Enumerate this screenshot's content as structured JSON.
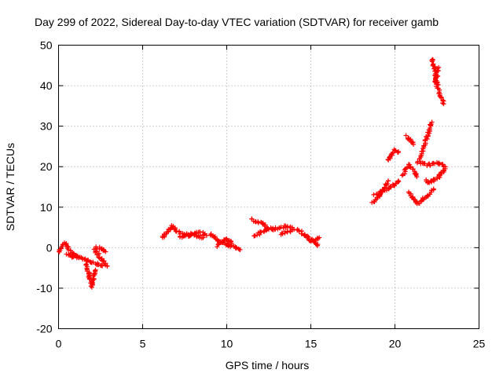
{
  "chart_data": {
    "type": "scatter",
    "title": "Day 299 of 2022, Sidereal Day-to-day VTEC variation (SDTVAR) for receiver gamb",
    "xlabel": "GPS time / hours",
    "ylabel": "SDTVAR / TECUs",
    "xlim": [
      0,
      25
    ],
    "ylim": [
      -20,
      50
    ],
    "xticks": [
      0,
      5,
      10,
      15,
      20,
      25
    ],
    "yticks": [
      -20,
      -10,
      0,
      10,
      20,
      30,
      40,
      50
    ],
    "grid": true,
    "marker": "+",
    "color": "#ff0000",
    "segments": [
      {
        "x": [
          0.0,
          0.2,
          0.4,
          0.6,
          0.8,
          1.0,
          1.2
        ],
        "y": [
          -1.0,
          0.5,
          1.2,
          -0.5,
          -1.5,
          -2.0,
          -2.5
        ]
      },
      {
        "x": [
          0.5,
          0.8,
          1.1,
          1.4,
          1.7,
          2.0,
          2.3,
          2.6
        ],
        "y": [
          -1.8,
          -2.2,
          -2.0,
          -2.6,
          -3.0,
          -3.5,
          -4.0,
          -4.5
        ]
      },
      {
        "x": [
          1.6,
          1.7,
          1.8,
          1.9,
          2.0,
          2.1,
          2.2
        ],
        "y": [
          -4.0,
          -5.0,
          -6.5,
          -8.0,
          -9.5,
          -7.0,
          -5.5
        ]
      },
      {
        "x": [
          2.1,
          2.3,
          2.5,
          2.7,
          2.9
        ],
        "y": [
          -0.5,
          -1.5,
          -2.5,
          -3.5,
          -4.5
        ]
      },
      {
        "x": [
          2.2,
          2.4,
          2.6,
          2.8
        ],
        "y": [
          0.0,
          0.0,
          -0.5,
          -1.0
        ]
      },
      {
        "x": [
          6.2,
          6.4,
          6.6,
          6.8,
          7.0
        ],
        "y": [
          2.5,
          3.5,
          4.5,
          5.5,
          4.0
        ]
      },
      {
        "x": [
          7.0,
          7.4,
          7.8,
          8.2,
          8.6
        ],
        "y": [
          4.0,
          3.5,
          3.0,
          3.0,
          2.5
        ]
      },
      {
        "x": [
          7.2,
          7.6,
          8.0,
          8.4,
          8.8
        ],
        "y": [
          2.5,
          2.8,
          3.5,
          3.8,
          3.0
        ]
      },
      {
        "x": [
          9.0,
          9.3,
          9.6,
          9.9,
          10.2,
          10.5,
          10.8
        ],
        "y": [
          3.5,
          2.5,
          1.5,
          1.0,
          0.5,
          0.0,
          -0.5
        ]
      },
      {
        "x": [
          9.4,
          9.7,
          10.0,
          10.3
        ],
        "y": [
          0.5,
          1.5,
          2.0,
          1.0
        ]
      },
      {
        "x": [
          11.5,
          11.8,
          12.1,
          12.4,
          12.7
        ],
        "y": [
          7.0,
          6.5,
          6.0,
          5.0,
          4.5
        ]
      },
      {
        "x": [
          11.6,
          11.9,
          12.2,
          12.5
        ],
        "y": [
          3.0,
          3.5,
          4.0,
          4.5
        ]
      },
      {
        "x": [
          12.7,
          13.1,
          13.5,
          13.9
        ],
        "y": [
          4.5,
          5.0,
          5.2,
          5.0
        ]
      },
      {
        "x": [
          13.2,
          13.6,
          14.0
        ],
        "y": [
          3.5,
          4.0,
          4.5
        ]
      },
      {
        "x": [
          14.2,
          14.5,
          14.8,
          15.1,
          15.4
        ],
        "y": [
          4.5,
          3.5,
          2.5,
          1.5,
          0.5
        ]
      },
      {
        "x": [
          14.6,
          14.9,
          15.2,
          15.5
        ],
        "y": [
          3.0,
          2.0,
          1.5,
          2.5
        ]
      },
      {
        "x": [
          18.7,
          19.0,
          19.3,
          19.6
        ],
        "y": [
          11.0,
          12.5,
          14.0,
          16.5
        ]
      },
      {
        "x": [
          18.8,
          19.1,
          19.4,
          19.7,
          20.0,
          20.2
        ],
        "y": [
          13.0,
          13.5,
          14.0,
          14.8,
          15.5,
          16.5
        ]
      },
      {
        "x": [
          19.6,
          19.8,
          20.0,
          20.2
        ],
        "y": [
          21.5,
          23.0,
          24.0,
          23.5
        ]
      },
      {
        "x": [
          20.7,
          20.9,
          21.1
        ],
        "y": [
          27.5,
          26.5,
          25.5
        ]
      },
      {
        "x": [
          20.5,
          20.7,
          20.9,
          21.1,
          21.3
        ],
        "y": [
          18.0,
          19.5,
          20.5,
          19.0,
          17.5
        ]
      },
      {
        "x": [
          20.8,
          21.1,
          21.4,
          21.7,
          22.0,
          22.3
        ],
        "y": [
          13.5,
          12.0,
          11.0,
          12.0,
          13.0,
          14.5
        ]
      },
      {
        "x": [
          21.4,
          21.6,
          21.8,
          22.0,
          22.2
        ],
        "y": [
          21.0,
          23.5,
          26.0,
          28.5,
          31.0
        ]
      },
      {
        "x": [
          21.6,
          21.9,
          22.2,
          22.5,
          22.8,
          23.0
        ],
        "y": [
          21.0,
          20.5,
          20.5,
          21.0,
          20.5,
          20.0
        ]
      },
      {
        "x": [
          21.8,
          22.0,
          22.2,
          22.4,
          22.6,
          22.8,
          23.0
        ],
        "y": [
          16.5,
          16.0,
          16.5,
          17.0,
          17.5,
          18.5,
          19.5
        ]
      },
      {
        "x": [
          22.2,
          22.3,
          22.4,
          22.5,
          22.6,
          22.7,
          22.8,
          22.9
        ],
        "y": [
          46.5,
          45.5,
          43.0,
          40.5,
          38.5,
          37.5,
          36.5,
          35.5
        ]
      },
      {
        "x": [
          22.4,
          22.5,
          22.6
        ],
        "y": [
          40.0,
          42.5,
          44.5
        ]
      }
    ]
  }
}
